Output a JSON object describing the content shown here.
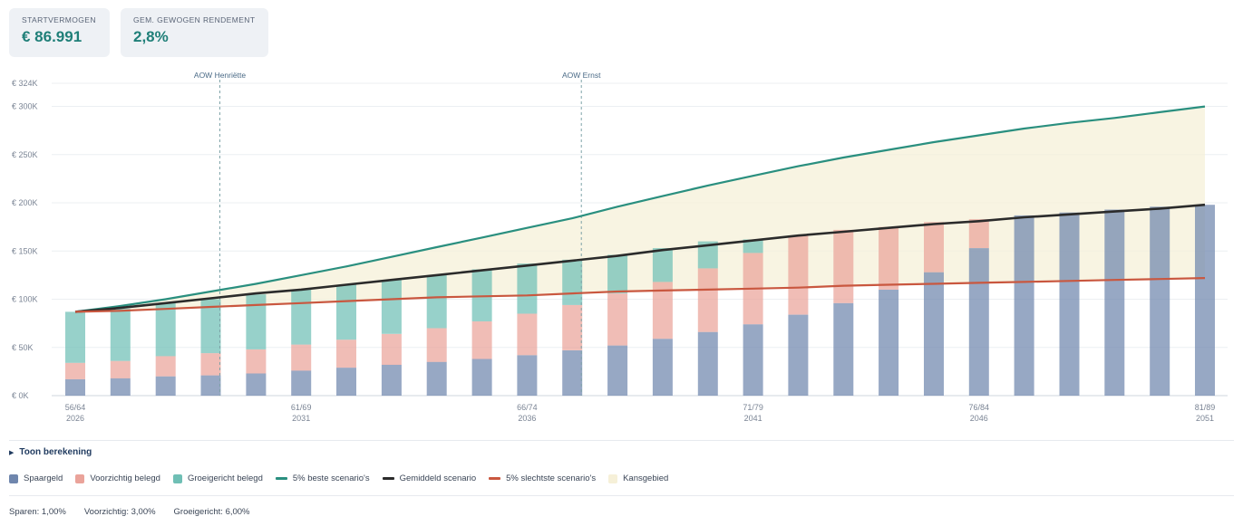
{
  "summary": {
    "start_label": "STARTVERMOGEN",
    "start_value": "€ 86.991",
    "return_label": "GEM. GEWOGEN RENDEMENT",
    "return_value": "2,8%"
  },
  "chart_data": {
    "type": "bar",
    "subtype": "stacked-bar-with-lines",
    "ylim": [
      0,
      324000
    ],
    "y_ticks": [
      0,
      50000,
      100000,
      150000,
      200000,
      250000,
      300000,
      324000
    ],
    "y_tick_labels": [
      "€ 0K",
      "€ 50K",
      "€ 100K",
      "€ 150K",
      "€ 200K",
      "€ 250K",
      "€ 300K",
      "€ 324K"
    ],
    "x_tick_labels": [
      {
        "index": 0,
        "age": "56/64",
        "year": "2026"
      },
      {
        "index": 5,
        "age": "61/69",
        "year": "2031"
      },
      {
        "index": 10,
        "age": "66/74",
        "year": "2036"
      },
      {
        "index": 15,
        "age": "71/79",
        "year": "2041"
      },
      {
        "index": 20,
        "age": "76/84",
        "year": "2046"
      },
      {
        "index": 25,
        "age": "81/89",
        "year": "2051"
      }
    ],
    "categories": [
      "2026",
      "2027",
      "2028",
      "2029",
      "2030",
      "2031",
      "2032",
      "2033",
      "2034",
      "2035",
      "2036",
      "2037",
      "2038",
      "2039",
      "2040",
      "2041",
      "2042",
      "2043",
      "2044",
      "2045",
      "2046",
      "2047",
      "2048",
      "2049",
      "2050",
      "2051"
    ],
    "series": [
      {
        "name": "Spaargeld",
        "color": "#6f86ad",
        "values": [
          17000,
          18000,
          20000,
          21000,
          23000,
          26000,
          29000,
          32000,
          35000,
          38000,
          42000,
          47000,
          52000,
          59000,
          66000,
          74000,
          84000,
          96000,
          110000,
          128000,
          153000,
          187000,
          190000,
          193000,
          196000,
          198000
        ]
      },
      {
        "name": "Voorzichtig belegd",
        "color": "#eaa39a",
        "values": [
          17000,
          18000,
          21000,
          23000,
          25000,
          27000,
          29000,
          32000,
          35000,
          39000,
          43000,
          47000,
          54000,
          59000,
          66000,
          74000,
          82000,
          76000,
          65000,
          52000,
          30000,
          0,
          0,
          0,
          0,
          0
        ]
      },
      {
        "name": "Groeigericht belegd",
        "color": "#6fbfb5",
        "values": [
          53000,
          54000,
          55000,
          56000,
          57000,
          57000,
          57000,
          56000,
          55000,
          54000,
          52000,
          47000,
          40000,
          35000,
          28000,
          14000,
          0,
          0,
          0,
          0,
          0,
          0,
          0,
          0,
          0,
          0
        ]
      }
    ],
    "lines": [
      {
        "name": "5% beste scenario's",
        "color": "#2a8f7f",
        "values": [
          87000,
          93000,
          100000,
          108000,
          116000,
          125000,
          134000,
          144000,
          154000,
          164000,
          174000,
          184000,
          196000,
          207000,
          218000,
          228000,
          238000,
          247000,
          255000,
          263000,
          270000,
          277000,
          283000,
          288000,
          294000,
          300000
        ]
      },
      {
        "name": "Gemiddeld scenario",
        "color": "#2b2b2b",
        "values": [
          87000,
          91000,
          96000,
          101000,
          106000,
          110000,
          115000,
          120000,
          125000,
          130000,
          135000,
          140000,
          145000,
          151000,
          156000,
          161000,
          166000,
          170000,
          174000,
          178000,
          181000,
          185000,
          188000,
          191000,
          194000,
          198000
        ]
      },
      {
        "name": "5% slechtste scenario's",
        "color": "#c9573f",
        "values": [
          87000,
          88000,
          90000,
          92000,
          94000,
          96000,
          98000,
          100000,
          102000,
          103000,
          104000,
          106000,
          108000,
          109000,
          110000,
          111000,
          112000,
          114000,
          115000,
          116000,
          117000,
          118000,
          119000,
          120000,
          121000,
          122000
        ]
      }
    ],
    "annotations": [
      {
        "label": "AOW Henriëtte",
        "position": 3.2
      },
      {
        "label": "AOW Ernst",
        "position": 11.2
      }
    ],
    "area": {
      "name": "Kansgebied",
      "color": "#f6f0d8",
      "between": [
        "5% slechtste scenario's",
        "5% beste scenario's"
      ]
    }
  },
  "toggle": {
    "label": "Toon berekening"
  },
  "legend": [
    {
      "label": "Spaargeld",
      "kind": "box",
      "color": "#6f86ad"
    },
    {
      "label": "Voorzichtig belegd",
      "kind": "box",
      "color": "#eaa39a"
    },
    {
      "label": "Groeigericht belegd",
      "kind": "box",
      "color": "#6fbfb5"
    },
    {
      "label": "5% beste scenario's",
      "kind": "line",
      "color": "#2a8f7f"
    },
    {
      "label": "Gemiddeld scenario",
      "kind": "line",
      "color": "#2b2b2b"
    },
    {
      "label": "5% slechtste scenario's",
      "kind": "line",
      "color": "#c9573f"
    },
    {
      "label": "Kansgebied",
      "kind": "box",
      "color": "#f6f0d8"
    }
  ],
  "footer": {
    "sparen": "Sparen: 1,00%",
    "voorzichtig": "Voorzichtig: 3,00%",
    "groeigericht": "Groeigericht: 6,00%"
  }
}
